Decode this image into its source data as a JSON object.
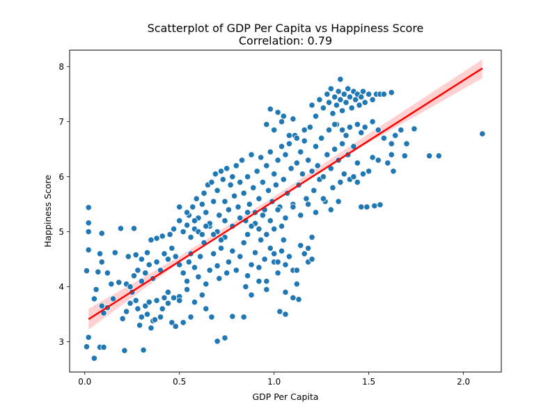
{
  "chart_data": {
    "type": "scatter",
    "title": "Scatterplot of GDP Per Capita vs Happiness Score",
    "subtitle": "Correlation: 0.79",
    "xlabel": "GDP Per Capita",
    "ylabel": "Happiness Score",
    "xlim": [
      -0.08,
      2.2
    ],
    "ylim": [
      2.45,
      8.3
    ],
    "xticks": [
      0.0,
      0.5,
      1.0,
      1.5,
      2.0
    ],
    "xtick_labels": [
      "0.0",
      "0.5",
      "1.0",
      "1.5",
      "2.0"
    ],
    "yticks": [
      3,
      4,
      5,
      6,
      7,
      8
    ],
    "ytick_labels": [
      "3",
      "4",
      "5",
      "6",
      "7",
      "8"
    ],
    "grid": false,
    "point_color": "#1f77b4",
    "regression": {
      "color": "#ff0000",
      "band_color": "#ffb3b3",
      "x_start": 0.02,
      "y_start": 3.41,
      "x_end": 2.1,
      "y_end": 7.97,
      "band": [
        [
          0.02,
          3.22,
          3.6
        ],
        [
          0.5,
          4.44,
          4.55
        ],
        [
          1.0,
          5.56,
          5.64
        ],
        [
          1.5,
          6.62,
          6.78
        ],
        [
          2.1,
          7.79,
          8.13
        ]
      ]
    },
    "points": [
      [
        0.01,
        2.91
      ],
      [
        0.02,
        3.08
      ],
      [
        0.05,
        2.7
      ],
      [
        0.08,
        2.9
      ],
      [
        0.1,
        2.9
      ],
      [
        0.21,
        2.84
      ],
      [
        0.31,
        2.85
      ],
      [
        0.02,
        5.44
      ],
      [
        0.02,
        5.16
      ],
      [
        0.02,
        5.0
      ],
      [
        0.02,
        4.67
      ],
      [
        0.01,
        4.29
      ],
      [
        0.07,
        4.27
      ],
      [
        0.09,
        4.97
      ],
      [
        0.05,
        3.78
      ],
      [
        0.09,
        3.65
      ],
      [
        0.06,
        3.95
      ],
      [
        0.12,
        3.62
      ],
      [
        0.1,
        3.52
      ],
      [
        0.15,
        3.78
      ],
      [
        0.14,
        4.05
      ],
      [
        0.08,
        4.6
      ],
      [
        0.09,
        4.45
      ],
      [
        0.12,
        4.25
      ],
      [
        0.16,
        4.62
      ],
      [
        0.19,
        5.06
      ],
      [
        0.26,
        5.06
      ],
      [
        0.18,
        4.08
      ],
      [
        0.2,
        3.42
      ],
      [
        0.22,
        3.55
      ],
      [
        0.24,
        3.7
      ],
      [
        0.27,
        3.75
      ],
      [
        0.28,
        3.6
      ],
      [
        0.3,
        3.45
      ],
      [
        0.29,
        3.3
      ],
      [
        0.32,
        3.65
      ],
      [
        0.34,
        3.72
      ],
      [
        0.33,
        3.5
      ],
      [
        0.36,
        3.38
      ],
      [
        0.35,
        3.25
      ],
      [
        0.37,
        3.4
      ],
      [
        0.38,
        3.75
      ],
      [
        0.4,
        3.45
      ],
      [
        0.41,
        3.6
      ],
      [
        0.42,
        3.8
      ],
      [
        0.44,
        3.7
      ],
      [
        0.46,
        3.35
      ],
      [
        0.48,
        3.28
      ],
      [
        0.5,
        3.82
      ],
      [
        0.52,
        3.35
      ],
      [
        0.22,
        4.05
      ],
      [
        0.24,
        4.0
      ],
      [
        0.26,
        4.2
      ],
      [
        0.25,
        3.9
      ],
      [
        0.28,
        4.3
      ],
      [
        0.3,
        4.1
      ],
      [
        0.32,
        4.25
      ],
      [
        0.34,
        4.4
      ],
      [
        0.36,
        4.15
      ],
      [
        0.38,
        4.45
      ],
      [
        0.4,
        4.3
      ],
      [
        0.42,
        4.6
      ],
      [
        0.44,
        4.5
      ],
      [
        0.46,
        4.7
      ],
      [
        0.48,
        4.55
      ],
      [
        0.23,
        4.55
      ],
      [
        0.27,
        4.58
      ],
      [
        0.3,
        4.5
      ],
      [
        0.33,
        4.62
      ],
      [
        0.35,
        4.85
      ],
      [
        0.38,
        4.88
      ],
      [
        0.41,
        4.92
      ],
      [
        0.45,
        4.95
      ],
      [
        0.47,
        5.05
      ],
      [
        0.5,
        5.2
      ],
      [
        0.5,
        4.4
      ],
      [
        0.52,
        4.25
      ],
      [
        0.54,
        4.1
      ],
      [
        0.55,
        4.45
      ],
      [
        0.56,
        4.6
      ],
      [
        0.58,
        4.35
      ],
      [
        0.6,
        4.18
      ],
      [
        0.61,
        4.55
      ],
      [
        0.63,
        4.8
      ],
      [
        0.64,
        4.05
      ],
      [
        0.66,
        4.3
      ],
      [
        0.68,
        4.6
      ],
      [
        0.7,
        4.38
      ],
      [
        0.71,
        4.15
      ],
      [
        0.72,
        4.7
      ],
      [
        0.74,
        4.9
      ],
      [
        0.75,
        4.25
      ],
      [
        0.76,
        4.45
      ],
      [
        0.78,
        4.65
      ],
      [
        0.8,
        4.3
      ],
      [
        0.82,
        4.55
      ],
      [
        0.84,
        4.8
      ],
      [
        0.85,
        4.0
      ],
      [
        0.86,
        4.2
      ],
      [
        0.88,
        4.4
      ],
      [
        0.9,
        4.62
      ],
      [
        0.92,
        4.35
      ],
      [
        0.93,
        4.85
      ],
      [
        0.95,
        4.5
      ],
      [
        0.96,
        4.1
      ],
      [
        0.98,
        4.7
      ],
      [
        1.0,
        4.45
      ],
      [
        1.02,
        4.25
      ],
      [
        1.04,
        4.65
      ],
      [
        1.05,
        4.85
      ],
      [
        1.06,
        4.4
      ],
      [
        1.08,
        4.55
      ],
      [
        1.1,
        4.3
      ],
      [
        1.12,
        4.05
      ],
      [
        1.14,
        4.75
      ],
      [
        1.16,
        4.6
      ],
      [
        1.18,
        4.45
      ],
      [
        1.2,
        4.9
      ],
      [
        0.52,
        5.0
      ],
      [
        0.54,
        5.12
      ],
      [
        0.55,
        5.3
      ],
      [
        0.56,
        4.9
      ],
      [
        0.57,
        5.45
      ],
      [
        0.58,
        5.05
      ],
      [
        0.59,
        5.6
      ],
      [
        0.6,
        5.25
      ],
      [
        0.62,
        5.5
      ],
      [
        0.63,
        5.7
      ],
      [
        0.64,
        5.35
      ],
      [
        0.65,
        5.85
      ],
      [
        0.66,
        5.1
      ],
      [
        0.67,
        5.9
      ],
      [
        0.68,
        5.55
      ],
      [
        0.69,
        6.05
      ],
      [
        0.7,
        5.75
      ],
      [
        0.71,
        5.3
      ],
      [
        0.72,
        6.1
      ],
      [
        0.73,
        5.95
      ],
      [
        0.74,
        5.55
      ],
      [
        0.75,
        6.15
      ],
      [
        0.76,
        5.4
      ],
      [
        0.77,
        5.85
      ],
      [
        0.78,
        6.0
      ],
      [
        0.79,
        5.65
      ],
      [
        0.8,
        6.2
      ],
      [
        0.81,
        5.45
      ],
      [
        0.82,
        5.9
      ],
      [
        0.83,
        6.3
      ],
      [
        0.84,
        5.7
      ],
      [
        0.85,
        5.2
      ],
      [
        0.86,
        6.0
      ],
      [
        0.87,
        5.5
      ],
      [
        0.88,
        6.4
      ],
      [
        0.89,
        5.8
      ],
      [
        0.9,
        5.35
      ],
      [
        0.91,
        6.1
      ],
      [
        0.92,
        5.6
      ],
      [
        0.93,
        6.35
      ],
      [
        0.94,
        5.9
      ],
      [
        0.95,
        5.4
      ],
      [
        0.96,
        6.2
      ],
      [
        0.97,
        5.75
      ],
      [
        0.98,
        6.45
      ],
      [
        0.99,
        5.55
      ],
      [
        1.0,
        6.05
      ],
      [
        1.01,
        5.85
      ],
      [
        1.02,
        6.3
      ],
      [
        1.03,
        5.45
      ],
      [
        1.04,
        6.55
      ],
      [
        1.05,
        5.95
      ],
      [
        1.06,
        6.4
      ],
      [
        1.07,
        5.7
      ],
      [
        1.08,
        6.6
      ],
      [
        1.09,
        6.15
      ],
      [
        1.1,
        5.5
      ],
      [
        1.11,
        6.75
      ],
      [
        1.12,
        6.25
      ],
      [
        1.13,
        5.85
      ],
      [
        1.14,
        6.45
      ],
      [
        1.15,
        6.05
      ],
      [
        1.16,
        6.65
      ],
      [
        1.17,
        5.6
      ],
      [
        1.18,
        6.3
      ],
      [
        1.19,
        6.9
      ],
      [
        1.2,
        6.1
      ],
      [
        1.21,
        5.75
      ],
      [
        1.22,
        6.55
      ],
      [
        1.23,
        6.2
      ],
      [
        1.24,
        5.95
      ],
      [
        1.25,
        6.7
      ],
      [
        1.26,
        6.0
      ],
      [
        1.27,
        5.55
      ],
      [
        1.28,
        6.4
      ],
      [
        1.29,
        6.85
      ],
      [
        1.3,
        6.15
      ],
      [
        1.31,
        5.8
      ],
      [
        1.32,
        6.5
      ],
      [
        1.33,
        6.95
      ],
      [
        1.34,
        6.3
      ],
      [
        1.35,
        5.9
      ],
      [
        1.36,
        6.6
      ],
      [
        1.37,
        6.05
      ],
      [
        1.38,
        6.75
      ],
      [
        1.39,
        6.4
      ],
      [
        1.4,
        5.95
      ],
      [
        1.42,
        6.55
      ],
      [
        1.44,
        6.25
      ],
      [
        1.46,
        6.8
      ],
      [
        0.6,
        5.0
      ],
      [
        0.62,
        4.95
      ],
      [
        0.66,
        5.15
      ],
      [
        0.7,
        5.0
      ],
      [
        0.74,
        5.2
      ],
      [
        0.78,
        5.1
      ],
      [
        0.82,
        5.25
      ],
      [
        0.86,
        5.35
      ],
      [
        0.9,
        5.15
      ],
      [
        0.94,
        5.3
      ],
      [
        0.98,
        5.2
      ],
      [
        1.02,
        5.4
      ],
      [
        1.06,
        5.25
      ],
      [
        1.1,
        5.45
      ],
      [
        1.14,
        5.3
      ],
      [
        1.18,
        5.5
      ],
      [
        1.22,
        5.35
      ],
      [
        1.26,
        5.6
      ],
      [
        1.3,
        5.4
      ],
      [
        1.34,
        5.55
      ],
      [
        1.2,
        7.3
      ],
      [
        1.22,
        7.1
      ],
      [
        1.24,
        7.4
      ],
      [
        1.26,
        7.25
      ],
      [
        1.28,
        7.5
      ],
      [
        1.29,
        7.35
      ],
      [
        1.3,
        7.6
      ],
      [
        1.31,
        7.15
      ],
      [
        1.32,
        7.45
      ],
      [
        1.33,
        7.3
      ],
      [
        1.34,
        7.55
      ],
      [
        1.35,
        7.4
      ],
      [
        1.36,
        7.2
      ],
      [
        1.37,
        7.5
      ],
      [
        1.38,
        7.35
      ],
      [
        1.39,
        7.6
      ],
      [
        1.4,
        7.45
      ],
      [
        1.41,
        7.25
      ],
      [
        1.42,
        7.55
      ],
      [
        1.43,
        7.4
      ],
      [
        1.44,
        7.5
      ],
      [
        1.45,
        7.3
      ],
      [
        1.46,
        7.45
      ],
      [
        1.47,
        7.55
      ],
      [
        1.48,
        7.35
      ],
      [
        1.5,
        7.5
      ],
      [
        1.52,
        7.4
      ],
      [
        1.54,
        7.5
      ],
      [
        1.56,
        7.5
      ],
      [
        1.58,
        7.5
      ],
      [
        1.62,
        7.53
      ],
      [
        1.35,
        7.77
      ],
      [
        1.32,
        6.95
      ],
      [
        1.36,
        6.85
      ],
      [
        1.4,
        6.9
      ],
      [
        1.44,
        6.95
      ],
      [
        1.48,
        6.9
      ],
      [
        1.52,
        7.0
      ],
      [
        1.55,
        6.85
      ],
      [
        1.58,
        6.7
      ],
      [
        1.62,
        6.6
      ],
      [
        1.64,
        6.75
      ],
      [
        1.67,
        6.85
      ],
      [
        1.7,
        6.6
      ],
      [
        1.74,
        6.87
      ],
      [
        1.69,
        6.38
      ],
      [
        1.62,
        6.4
      ],
      [
        1.6,
        6.25
      ],
      [
        1.63,
        6.1
      ],
      [
        1.55,
        6.3
      ],
      [
        1.52,
        6.35
      ],
      [
        1.5,
        6.1
      ],
      [
        1.47,
        6.05
      ],
      [
        1.44,
        5.9
      ],
      [
        1.42,
        6.0
      ],
      [
        1.46,
        5.45
      ],
      [
        1.49,
        5.45
      ],
      [
        1.53,
        5.47
      ],
      [
        1.56,
        5.49
      ],
      [
        1.82,
        6.38
      ],
      [
        1.87,
        6.38
      ],
      [
        2.1,
        6.78
      ],
      [
        0.98,
        7.23
      ],
      [
        1.02,
        7.17
      ],
      [
        1.05,
        7.1
      ],
      [
        1.1,
        7.05
      ],
      [
        0.96,
        6.95
      ],
      [
        1.0,
        6.85
      ],
      [
        1.04,
        7.0
      ],
      [
        1.08,
        6.75
      ],
      [
        1.12,
        6.7
      ],
      [
        1.16,
        6.85
      ],
      [
        1.12,
        4.3
      ],
      [
        1.1,
        3.8
      ],
      [
        1.06,
        3.9
      ],
      [
        1.03,
        3.55
      ],
      [
        1.06,
        3.5
      ],
      [
        1.13,
        3.77
      ],
      [
        1.02,
        4.45
      ],
      [
        1.0,
        4.6
      ],
      [
        0.96,
        3.95
      ],
      [
        0.88,
        3.85
      ],
      [
        0.92,
        4.1
      ],
      [
        0.84,
        3.45
      ],
      [
        0.78,
        3.46
      ],
      [
        0.74,
        3.07
      ],
      [
        0.7,
        3.01
      ],
      [
        0.67,
        3.45
      ],
      [
        0.64,
        3.6
      ],
      [
        0.62,
        3.85
      ],
      [
        0.58,
        3.72
      ],
      [
        0.56,
        3.45
      ],
      [
        0.54,
        3.95
      ],
      [
        0.5,
        3.75
      ],
      [
        0.47,
        3.8
      ],
      [
        0.44,
        3.9
      ],
      [
        1.2,
        4.5
      ],
      [
        1.18,
        4.7
      ],
      [
        0.86,
        4.95
      ],
      [
        0.92,
        5.05
      ],
      [
        0.88,
        5.1
      ],
      [
        0.96,
        4.95
      ],
      [
        1.0,
        5.05
      ],
      [
        1.04,
        5.1
      ],
      [
        0.68,
        4.95
      ],
      [
        0.72,
        4.85
      ],
      [
        0.64,
        5.1
      ],
      [
        0.58,
        5.2
      ],
      [
        0.54,
        5.35
      ],
      [
        0.5,
        5.45
      ]
    ]
  }
}
